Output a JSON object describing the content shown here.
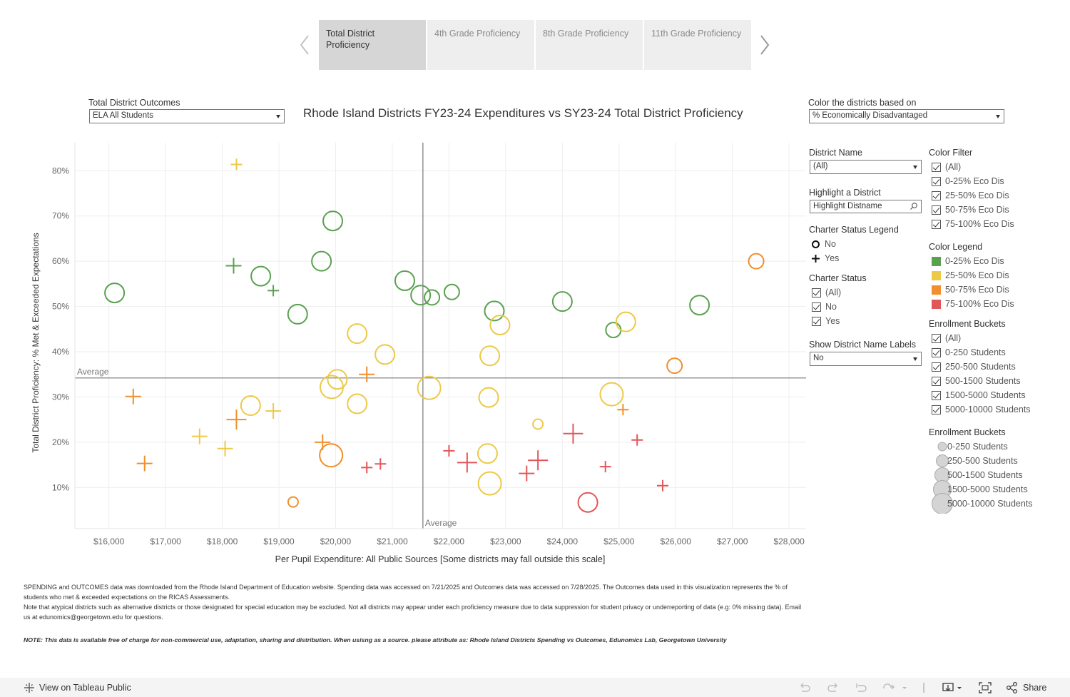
{
  "tabs": [
    {
      "label": "Total District Proficiency",
      "active": true
    },
    {
      "label": "4th Grade Proficiency",
      "active": false
    },
    {
      "label": "8th Grade Proficiency",
      "active": false
    },
    {
      "label": "11th Grade Proficiency",
      "active": false
    }
  ],
  "outcomes": {
    "label": "Total District Outcomes",
    "value": "ELA All Students"
  },
  "title": "Rhode Island Districts FY23-24 Expenditures vs SY23-24 Total District Proficiency",
  "color_by": {
    "label": "Color the districts based on",
    "value": "% Economically Disadvantaged"
  },
  "district_name": {
    "label": "District Name",
    "value": "(All)"
  },
  "highlight": {
    "label": "Highlight a District",
    "placeholder": "Highlight Distname"
  },
  "charter_legend": {
    "title": "Charter Status Legend",
    "no": "No",
    "yes": "Yes"
  },
  "charter_status": {
    "title": "Charter Status",
    "items": [
      "(All)",
      "No",
      "Yes"
    ]
  },
  "show_labels": {
    "label": "Show District Name Labels",
    "value": "No"
  },
  "color_filter": {
    "title": "Color Filter",
    "items": [
      "(All)",
      "0-25% Eco Dis",
      "25-50% Eco Dis",
      "50-75% Eco Dis",
      "75-100% Eco Dis"
    ]
  },
  "color_legend": {
    "title": "Color Legend",
    "items": [
      {
        "label": "0-25% Eco Dis",
        "color": "#59a14f"
      },
      {
        "label": "25-50% Eco Dis",
        "color": "#edc948"
      },
      {
        "label": "50-75% Eco Dis",
        "color": "#f28e2b"
      },
      {
        "label": "75-100% Eco Dis",
        "color": "#e15759"
      }
    ]
  },
  "enroll_filter": {
    "title": "Enrollment Buckets",
    "items": [
      "(All)",
      "0-250 Students",
      "250-500 Students",
      "500-1500 Students",
      "1500-5000 Students",
      "5000-10000 Students"
    ]
  },
  "enroll_legend": {
    "title": "Enrollment Buckets",
    "items": [
      "0-250 Students",
      "250-500 Students",
      "500-1500 Students",
      "1500-5000 Students",
      "5000-10000 Students"
    ]
  },
  "footnote1": "SPENDING and OUTCOMES data was downloaded from the Rhode Island Department of Education website. Spending data was accessed on 7/21/2025 and Outcomes data was accessed on 7/28/2025. The Outcomes data used in this visualization represents the % of students who met & exceeded expectations on the RICAS Assessments.",
  "footnote2": "Note that atypical districts such as alternative districts or those designated for special education may be excluded. Not all districts may appear under each proficiency measure due to data suppression for student privacy or underreporting of data (e.g: 0% missing data). Email us at edunomics@georgetown.edu for questions.",
  "footnote3": "NOTE: This data is available free of charge for non-commercial use, adaptation, sharing and distribution. When usisng as a source. please attribute as: Rhode Island Districts Spending vs Outcomes, Edunomics Lab, Georgetown University",
  "footer": {
    "view": "View on Tableau Public",
    "share": "Share"
  },
  "chart_data": {
    "type": "scatter",
    "title": "Rhode Island Districts FY23-24 Expenditures vs SY23-24 Total District Proficiency",
    "xlabel": "Per Pupil Expenditure: All Public Sources [Some districts may fall outside this scale]",
    "ylabel": "Total District Proficiency: % Met & Exceeded Expectations",
    "xlim": [
      15400,
      28300
    ],
    "ylim": [
      0.9,
      86.2
    ],
    "x_ticks": [
      16000,
      17000,
      18000,
      19000,
      20000,
      21000,
      22000,
      23000,
      24000,
      25000,
      26000,
      27000,
      28000
    ],
    "x_tick_labels": [
      "$16,000",
      "$17,000",
      "$18,000",
      "$19,000",
      "$20,000",
      "$21,000",
      "$22,000",
      "$23,000",
      "$24,000",
      "$25,000",
      "$26,000",
      "$27,000",
      "$28,000"
    ],
    "y_ticks": [
      10,
      20,
      30,
      40,
      50,
      60,
      70,
      80
    ],
    "y_tick_labels": [
      "10%",
      "20%",
      "30%",
      "40%",
      "50%",
      "60%",
      "70%",
      "80%"
    ],
    "reference_lines": {
      "x_average": 21540,
      "y_average": 34.2,
      "label": "Average"
    },
    "categories": [
      "0-25% Eco Dis",
      "25-50% Eco Dis",
      "50-75% Eco Dis",
      "75-100% Eco Dis"
    ],
    "size_levels": [
      "0-250 Students",
      "250-500 Students",
      "500-1500 Students",
      "1500-5000 Students",
      "5000-10000 Students"
    ],
    "points": [
      {
        "x": 16100,
        "y": 53.0,
        "cat": 0,
        "charter": false,
        "size": 3
      },
      {
        "x": 19950,
        "y": 68.9,
        "cat": 0,
        "charter": false,
        "size": 3
      },
      {
        "x": 19750,
        "y": 60.0,
        "cat": 0,
        "charter": false,
        "size": 3
      },
      {
        "x": 18680,
        "y": 56.7,
        "cat": 0,
        "charter": false,
        "size": 3
      },
      {
        "x": 18200,
        "y": 59.0,
        "cat": 0,
        "charter": true,
        "size": 2
      },
      {
        "x": 18900,
        "y": 53.5,
        "cat": 0,
        "charter": true,
        "size": 1
      },
      {
        "x": 19330,
        "y": 48.3,
        "cat": 0,
        "charter": false,
        "size": 3
      },
      {
        "x": 21220,
        "y": 55.7,
        "cat": 0,
        "charter": false,
        "size": 3
      },
      {
        "x": 21500,
        "y": 52.5,
        "cat": 0,
        "charter": false,
        "size": 3
      },
      {
        "x": 21700,
        "y": 52.0,
        "cat": 0,
        "charter": false,
        "size": 2
      },
      {
        "x": 22050,
        "y": 53.2,
        "cat": 0,
        "charter": false,
        "size": 2
      },
      {
        "x": 22800,
        "y": 49.0,
        "cat": 0,
        "charter": false,
        "size": 3
      },
      {
        "x": 24000,
        "y": 51.1,
        "cat": 0,
        "charter": false,
        "size": 3
      },
      {
        "x": 24900,
        "y": 44.8,
        "cat": 0,
        "charter": false,
        "size": 2
      },
      {
        "x": 26420,
        "y": 50.3,
        "cat": 0,
        "charter": false,
        "size": 3
      },
      {
        "x": 18250,
        "y": 81.4,
        "cat": 1,
        "charter": true,
        "size": 1
      },
      {
        "x": 20380,
        "y": 44.0,
        "cat": 1,
        "charter": false,
        "size": 3
      },
      {
        "x": 20870,
        "y": 39.4,
        "cat": 1,
        "charter": false,
        "size": 3
      },
      {
        "x": 20030,
        "y": 33.9,
        "cat": 1,
        "charter": false,
        "size": 3
      },
      {
        "x": 19930,
        "y": 32.2,
        "cat": 1,
        "charter": false,
        "size": 4
      },
      {
        "x": 20380,
        "y": 28.5,
        "cat": 1,
        "charter": false,
        "size": 3
      },
      {
        "x": 18500,
        "y": 28.1,
        "cat": 1,
        "charter": false,
        "size": 3
      },
      {
        "x": 18900,
        "y": 26.9,
        "cat": 1,
        "charter": true,
        "size": 2
      },
      {
        "x": 17600,
        "y": 21.3,
        "cat": 1,
        "charter": true,
        "size": 2
      },
      {
        "x": 18050,
        "y": 18.6,
        "cat": 1,
        "charter": true,
        "size": 2
      },
      {
        "x": 21650,
        "y": 32.0,
        "cat": 1,
        "charter": false,
        "size": 4
      },
      {
        "x": 22720,
        "y": 39.1,
        "cat": 1,
        "charter": false,
        "size": 3
      },
      {
        "x": 22900,
        "y": 45.9,
        "cat": 1,
        "charter": false,
        "size": 3
      },
      {
        "x": 22700,
        "y": 29.9,
        "cat": 1,
        "charter": false,
        "size": 3
      },
      {
        "x": 22680,
        "y": 17.5,
        "cat": 1,
        "charter": false,
        "size": 3
      },
      {
        "x": 22720,
        "y": 10.9,
        "cat": 1,
        "charter": false,
        "size": 4
      },
      {
        "x": 23570,
        "y": 24.0,
        "cat": 1,
        "charter": false,
        "size": 1
      },
      {
        "x": 24870,
        "y": 30.6,
        "cat": 1,
        "charter": false,
        "size": 4
      },
      {
        "x": 25120,
        "y": 46.6,
        "cat": 1,
        "charter": false,
        "size": 3
      },
      {
        "x": 16430,
        "y": 30.1,
        "cat": 2,
        "charter": true,
        "size": 2
      },
      {
        "x": 16630,
        "y": 15.3,
        "cat": 2,
        "charter": true,
        "size": 2
      },
      {
        "x": 18250,
        "y": 25.0,
        "cat": 2,
        "charter": true,
        "size": 3
      },
      {
        "x": 19770,
        "y": 20.0,
        "cat": 2,
        "charter": true,
        "size": 2
      },
      {
        "x": 19920,
        "y": 17.1,
        "cat": 2,
        "charter": false,
        "size": 4
      },
      {
        "x": 19250,
        "y": 6.8,
        "cat": 2,
        "charter": false,
        "size": 1
      },
      {
        "x": 20550,
        "y": 35.0,
        "cat": 2,
        "charter": true,
        "size": 2
      },
      {
        "x": 25070,
        "y": 27.2,
        "cat": 2,
        "charter": true,
        "size": 1
      },
      {
        "x": 25980,
        "y": 36.9,
        "cat": 2,
        "charter": false,
        "size": 2
      },
      {
        "x": 27420,
        "y": 60.0,
        "cat": 2,
        "charter": false,
        "size": 2
      },
      {
        "x": 20550,
        "y": 14.4,
        "cat": 3,
        "charter": true,
        "size": 1
      },
      {
        "x": 20790,
        "y": 15.2,
        "cat": 3,
        "charter": true,
        "size": 1
      },
      {
        "x": 22000,
        "y": 18.1,
        "cat": 3,
        "charter": true,
        "size": 1
      },
      {
        "x": 22320,
        "y": 15.5,
        "cat": 3,
        "charter": true,
        "size": 3
      },
      {
        "x": 23370,
        "y": 13.1,
        "cat": 3,
        "charter": true,
        "size": 2
      },
      {
        "x": 23570,
        "y": 16.0,
        "cat": 3,
        "charter": true,
        "size": 3
      },
      {
        "x": 24190,
        "y": 21.9,
        "cat": 3,
        "charter": true,
        "size": 3
      },
      {
        "x": 24450,
        "y": 6.7,
        "cat": 3,
        "charter": false,
        "size": 3
      },
      {
        "x": 24760,
        "y": 14.6,
        "cat": 3,
        "charter": true,
        "size": 1
      },
      {
        "x": 25320,
        "y": 20.5,
        "cat": 3,
        "charter": true,
        "size": 1
      },
      {
        "x": 25770,
        "y": 10.4,
        "cat": 3,
        "charter": true,
        "size": 1
      }
    ]
  }
}
